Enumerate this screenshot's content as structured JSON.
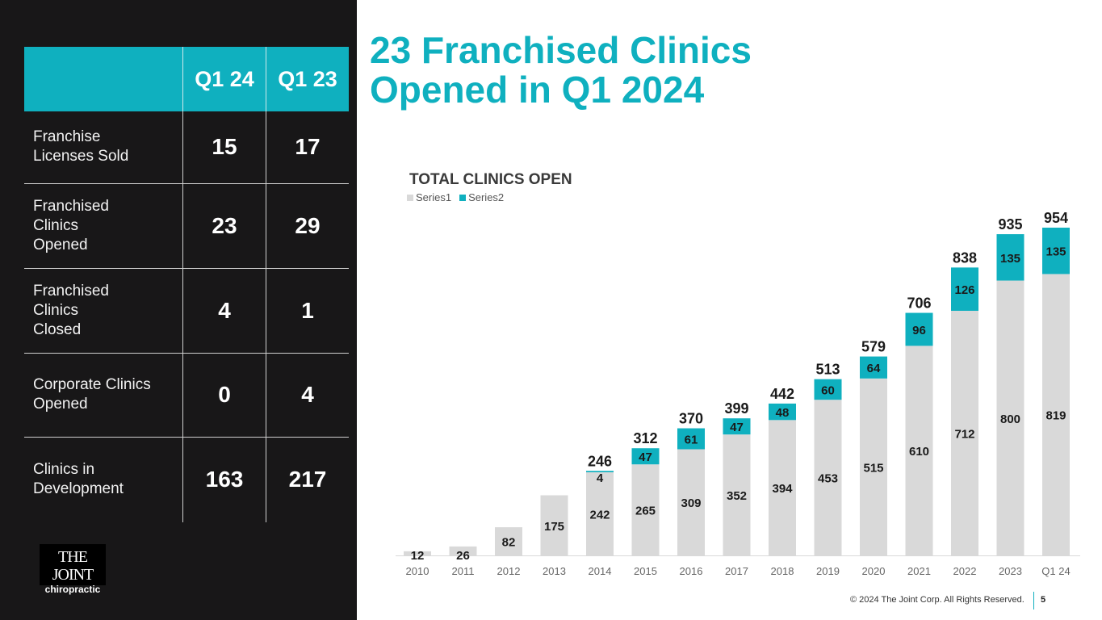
{
  "table": {
    "headers": [
      "",
      "Q1 24",
      "Q1 23"
    ],
    "rows": [
      {
        "label": "Franchise Licenses Sold",
        "q1_24": "15",
        "q1_23": "17"
      },
      {
        "label": "Franchised Clinics Opened",
        "q1_24": "23",
        "q1_23": "29"
      },
      {
        "label": "Franchised Clinics Closed",
        "q1_24": "4",
        "q1_23": "1"
      },
      {
        "label": "Corporate Clinics Opened",
        "q1_24": "0",
        "q1_23": "4"
      },
      {
        "label": "Clinics in Development",
        "q1_24": "163",
        "q1_23": "217"
      }
    ]
  },
  "logo": {
    "line1": "THE JOINT",
    "line2": "chiropractic"
  },
  "headline": {
    "line1": "23 Franchised Clinics",
    "line2": "Opened in Q1 2024"
  },
  "footer": {
    "copyright": "© 2024 The Joint Corp. All Rights Reserved.",
    "page": "5"
  },
  "colors": {
    "accent": "#0fb0bf",
    "series1": "#d9d9d9",
    "dark_panel": "#181718"
  },
  "chart_data": {
    "type": "bar",
    "stacked": true,
    "title": "TOTAL CLINICS OPEN",
    "legend": [
      "Series1",
      "Series2"
    ],
    "legend_position": "top-left",
    "xlabel": "",
    "ylabel": "",
    "ylim": [
      0,
      954
    ],
    "grid": false,
    "categories": [
      "2010",
      "2011",
      "2012",
      "2013",
      "2014",
      "2015",
      "2016",
      "2017",
      "2018",
      "2019",
      "2020",
      "2021",
      "2022",
      "2023",
      "Q1 24"
    ],
    "series": [
      {
        "name": "Series1",
        "color": "#d9d9d9",
        "values": [
          12,
          26,
          82,
          175,
          242,
          265,
          309,
          352,
          394,
          453,
          515,
          610,
          712,
          800,
          819
        ]
      },
      {
        "name": "Series2",
        "color": "#0fb0bf",
        "values": [
          null,
          null,
          null,
          null,
          4,
          47,
          61,
          47,
          48,
          60,
          64,
          96,
          126,
          135,
          135
        ]
      }
    ],
    "totals": [
      null,
      null,
      null,
      null,
      246,
      312,
      370,
      399,
      442,
      513,
      579,
      706,
      838,
      935,
      954
    ]
  }
}
